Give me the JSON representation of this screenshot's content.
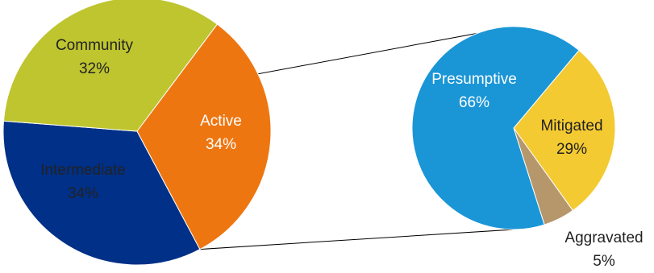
{
  "chart_data": [
    {
      "type": "pie",
      "slices": [
        {
          "label": "Active",
          "value": 34,
          "value_label": "34%",
          "color": "#003087",
          "text_color": "#ffffff"
        },
        {
          "label": "Intermediate",
          "value": 34,
          "value_label": "34%",
          "color": "#bec52f",
          "text_color": "#222222"
        },
        {
          "label": "Community",
          "value": 32,
          "value_label": "32%",
          "color": "#ee7611",
          "text_color": "#222222"
        }
      ],
      "breakout_slice": "Active"
    },
    {
      "type": "pie",
      "slices": [
        {
          "label": "Mitigated",
          "value": 29,
          "value_label": "29%",
          "color": "#f4ca32",
          "text_color": "#222222"
        },
        {
          "label": "Aggravated",
          "value": 5,
          "value_label": "5%",
          "color": "#b5976b",
          "text_color": "#222222"
        },
        {
          "label": "Presumptive",
          "value": 66,
          "value_label": "66%",
          "color": "#1a96d6",
          "text_color": "#ffffff"
        }
      ]
    }
  ]
}
